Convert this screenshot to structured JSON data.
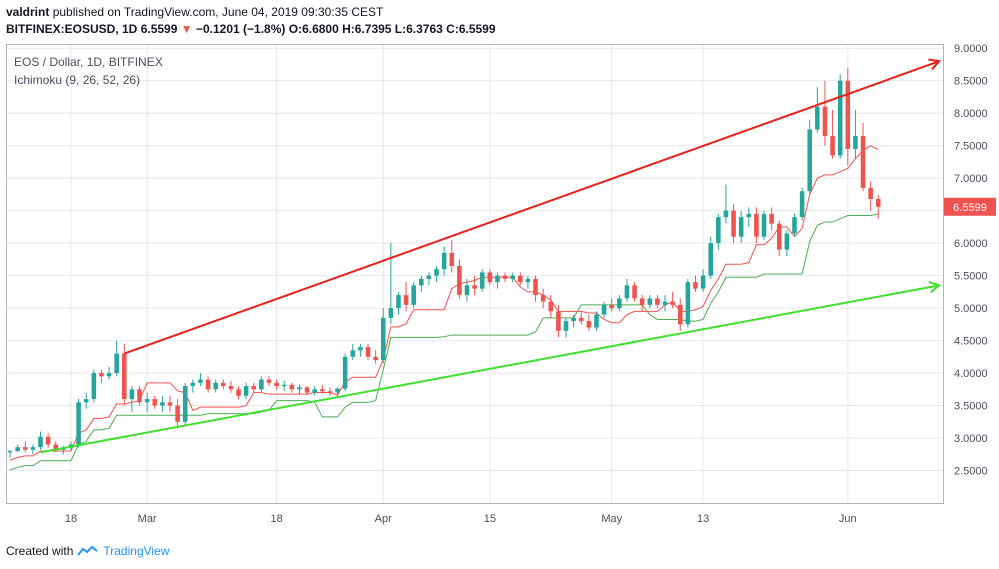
{
  "header": {
    "user": "valdrint",
    "published_text": "published on TradingView.com, June 04, 2019 09:30:35 CEST",
    "symbol": "BITFINEX:EOSUSD, 1D",
    "last": "6.5599",
    "arrow": "▼",
    "change": "−0.1201 (−1.8%)",
    "ohlc": "O:6.6800 H:6.7395 L:6.3763 C:6.5599"
  },
  "legend": {
    "title": "EOS / Dollar, 1D, BITFINEX",
    "indicator": "Ichimoku (9, 26, 52, 26)"
  },
  "price_label": "6.5599",
  "footer": {
    "created_with": "Created with",
    "brand": "TradingView"
  },
  "colors": {
    "up": "#26a69a",
    "down": "#ef5350",
    "conversion_line": "#ef5350",
    "base_line": "#4caf50",
    "resistance": "#e8201a",
    "support": "#3ee22d",
    "grid": "#e6e8ee"
  },
  "chart_data": {
    "type": "candlestick",
    "y_axis": {
      "ticks": [
        "2.5000",
        "3.0000",
        "3.5000",
        "4.0000",
        "4.5000",
        "5.0000",
        "5.5000",
        "6.0000",
        "6.5000",
        "7.0000",
        "7.5000",
        "8.0000",
        "8.5000",
        "9.0000"
      ],
      "ylim": [
        2.0,
        9.05
      ]
    },
    "x_axis": {
      "ticks": [
        {
          "label": "18",
          "index": 8
        },
        {
          "label": "Mar",
          "index": 18
        },
        {
          "label": "18",
          "index": 35
        },
        {
          "label": "Apr",
          "index": 49
        },
        {
          "label": "15",
          "index": 63
        },
        {
          "label": "May",
          "index": 79
        },
        {
          "label": "13",
          "index": 91
        },
        {
          "label": "Jun",
          "index": 110
        }
      ],
      "xlim": [
        -0.4,
        122.5
      ]
    },
    "grid": true,
    "candles": [
      [
        2.78,
        2.82,
        2.7,
        2.8
      ],
      [
        2.8,
        2.9,
        2.78,
        2.86
      ],
      [
        2.86,
        2.95,
        2.78,
        2.82
      ],
      [
        2.82,
        2.9,
        2.75,
        2.86
      ],
      [
        2.86,
        3.1,
        2.82,
        3.02
      ],
      [
        3.02,
        3.08,
        2.85,
        2.9
      ],
      [
        2.9,
        2.95,
        2.78,
        2.82
      ],
      [
        2.82,
        2.88,
        2.75,
        2.85
      ],
      [
        2.85,
        2.95,
        2.8,
        2.9
      ],
      [
        2.9,
        3.6,
        2.85,
        3.55
      ],
      [
        3.55,
        3.7,
        3.45,
        3.6
      ],
      [
        3.6,
        4.05,
        3.55,
        4.0
      ],
      [
        4.0,
        4.05,
        3.85,
        3.95
      ],
      [
        3.95,
        4.1,
        3.9,
        4.0
      ],
      [
        4.0,
        4.5,
        3.95,
        4.3
      ],
      [
        4.3,
        4.45,
        3.5,
        3.6
      ],
      [
        3.6,
        3.8,
        3.4,
        3.75
      ],
      [
        3.75,
        3.8,
        3.5,
        3.55
      ],
      [
        3.55,
        3.7,
        3.4,
        3.6
      ],
      [
        3.6,
        3.65,
        3.45,
        3.5
      ],
      [
        3.5,
        3.65,
        3.4,
        3.55
      ],
      [
        3.55,
        3.65,
        3.4,
        3.5
      ],
      [
        3.5,
        3.6,
        3.15,
        3.25
      ],
      [
        3.25,
        3.85,
        3.2,
        3.8
      ],
      [
        3.8,
        3.9,
        3.7,
        3.85
      ],
      [
        3.85,
        4.0,
        3.8,
        3.9
      ],
      [
        3.9,
        3.95,
        3.7,
        3.75
      ],
      [
        3.75,
        3.9,
        3.7,
        3.85
      ],
      [
        3.85,
        3.9,
        3.75,
        3.8
      ],
      [
        3.8,
        3.88,
        3.7,
        3.75
      ],
      [
        3.75,
        3.8,
        3.6,
        3.65
      ],
      [
        3.65,
        3.85,
        3.6,
        3.8
      ],
      [
        3.8,
        3.85,
        3.7,
        3.75
      ],
      [
        3.75,
        3.95,
        3.7,
        3.9
      ],
      [
        3.9,
        3.95,
        3.8,
        3.85
      ],
      [
        3.85,
        3.9,
        3.75,
        3.8
      ],
      [
        3.8,
        3.88,
        3.72,
        3.82
      ],
      [
        3.82,
        3.85,
        3.7,
        3.75
      ],
      [
        3.75,
        3.82,
        3.68,
        3.78
      ],
      [
        3.78,
        3.8,
        3.66,
        3.7
      ],
      [
        3.7,
        3.8,
        3.65,
        3.75
      ],
      [
        3.75,
        3.82,
        3.68,
        3.72
      ],
      [
        3.72,
        3.78,
        3.65,
        3.7
      ],
      [
        3.7,
        3.78,
        3.62,
        3.76
      ],
      [
        3.76,
        4.3,
        3.72,
        4.25
      ],
      [
        4.25,
        4.45,
        4.2,
        4.35
      ],
      [
        4.35,
        4.45,
        4.25,
        4.4
      ],
      [
        4.4,
        4.45,
        4.2,
        4.25
      ],
      [
        4.25,
        4.35,
        4.15,
        4.2
      ],
      [
        4.2,
        5.0,
        4.15,
        4.85
      ],
      [
        4.85,
        6.0,
        4.75,
        5.0
      ],
      [
        5.0,
        5.25,
        4.9,
        5.2
      ],
      [
        5.2,
        5.4,
        4.95,
        5.05
      ],
      [
        5.05,
        5.4,
        5.0,
        5.35
      ],
      [
        5.35,
        5.5,
        5.25,
        5.45
      ],
      [
        5.45,
        5.55,
        5.35,
        5.5
      ],
      [
        5.5,
        5.65,
        5.4,
        5.6
      ],
      [
        5.6,
        5.95,
        5.5,
        5.85
      ],
      [
        5.85,
        6.05,
        5.55,
        5.65
      ],
      [
        5.65,
        5.75,
        5.15,
        5.2
      ],
      [
        5.2,
        5.45,
        5.1,
        5.35
      ],
      [
        5.35,
        5.5,
        5.2,
        5.3
      ],
      [
        5.3,
        5.6,
        5.25,
        5.55
      ],
      [
        5.55,
        5.6,
        5.35,
        5.4
      ],
      [
        5.4,
        5.55,
        5.3,
        5.5
      ],
      [
        5.5,
        5.55,
        5.4,
        5.45
      ],
      [
        5.45,
        5.55,
        5.4,
        5.5
      ],
      [
        5.5,
        5.55,
        5.35,
        5.4
      ],
      [
        5.4,
        5.5,
        5.3,
        5.45
      ],
      [
        5.45,
        5.5,
        5.1,
        5.2
      ],
      [
        5.2,
        5.3,
        5.0,
        5.1
      ],
      [
        5.1,
        5.2,
        4.85,
        4.95
      ],
      [
        4.95,
        5.05,
        4.55,
        4.65
      ],
      [
        4.65,
        4.85,
        4.55,
        4.8
      ],
      [
        4.8,
        4.9,
        4.7,
        4.85
      ],
      [
        4.85,
        4.95,
        4.75,
        4.8
      ],
      [
        4.8,
        4.9,
        4.65,
        4.7
      ],
      [
        4.7,
        4.95,
        4.65,
        4.9
      ],
      [
        4.9,
        5.1,
        4.85,
        5.05
      ],
      [
        5.05,
        5.15,
        4.95,
        5.0
      ],
      [
        5.0,
        5.2,
        4.95,
        5.15
      ],
      [
        5.15,
        5.45,
        5.1,
        5.35
      ],
      [
        5.35,
        5.4,
        5.1,
        5.15
      ],
      [
        5.15,
        5.2,
        4.95,
        5.05
      ],
      [
        5.05,
        5.2,
        5.0,
        5.15
      ],
      [
        5.15,
        5.2,
        5.0,
        5.05
      ],
      [
        5.05,
        5.2,
        4.95,
        5.1
      ],
      [
        5.1,
        5.25,
        5.0,
        5.05
      ],
      [
        5.05,
        5.15,
        4.65,
        4.75
      ],
      [
        4.75,
        5.45,
        4.7,
        5.4
      ],
      [
        5.4,
        5.5,
        5.25,
        5.3
      ],
      [
        5.3,
        5.6,
        5.25,
        5.5
      ],
      [
        5.5,
        6.1,
        5.45,
        6.0
      ],
      [
        6.0,
        6.45,
        5.9,
        6.4
      ],
      [
        6.4,
        6.9,
        6.3,
        6.5
      ],
      [
        6.5,
        6.6,
        6.0,
        6.1
      ],
      [
        6.1,
        6.5,
        6.0,
        6.4
      ],
      [
        6.4,
        6.55,
        6.25,
        6.45
      ],
      [
        6.45,
        6.55,
        6.0,
        6.1
      ],
      [
        6.1,
        6.5,
        6.05,
        6.45
      ],
      [
        6.45,
        6.55,
        6.2,
        6.3
      ],
      [
        6.3,
        6.35,
        5.8,
        5.9
      ],
      [
        5.9,
        6.2,
        5.8,
        6.15
      ],
      [
        6.15,
        6.45,
        6.1,
        6.4
      ],
      [
        6.4,
        6.85,
        6.35,
        6.8
      ],
      [
        6.8,
        7.9,
        6.75,
        7.75
      ],
      [
        7.75,
        8.4,
        7.7,
        8.1
      ],
      [
        8.1,
        8.5,
        7.5,
        7.65
      ],
      [
        7.65,
        8.05,
        7.3,
        7.35
      ],
      [
        7.35,
        8.6,
        7.3,
        8.5
      ],
      [
        8.5,
        8.7,
        7.2,
        7.45
      ],
      [
        7.45,
        8.05,
        7.3,
        7.65
      ],
      [
        7.65,
        7.85,
        6.8,
        6.85
      ],
      [
        6.85,
        6.95,
        6.5,
        6.68
      ],
      [
        6.68,
        6.74,
        6.38,
        6.56
      ]
    ],
    "trendlines": [
      {
        "name": "resistance",
        "from": [
          15,
          4.3
        ],
        "to": [
          122,
          8.8
        ],
        "arrow": true
      },
      {
        "name": "support",
        "from": [
          4,
          2.78
        ],
        "to": [
          122,
          5.35
        ],
        "arrow": true
      }
    ]
  }
}
